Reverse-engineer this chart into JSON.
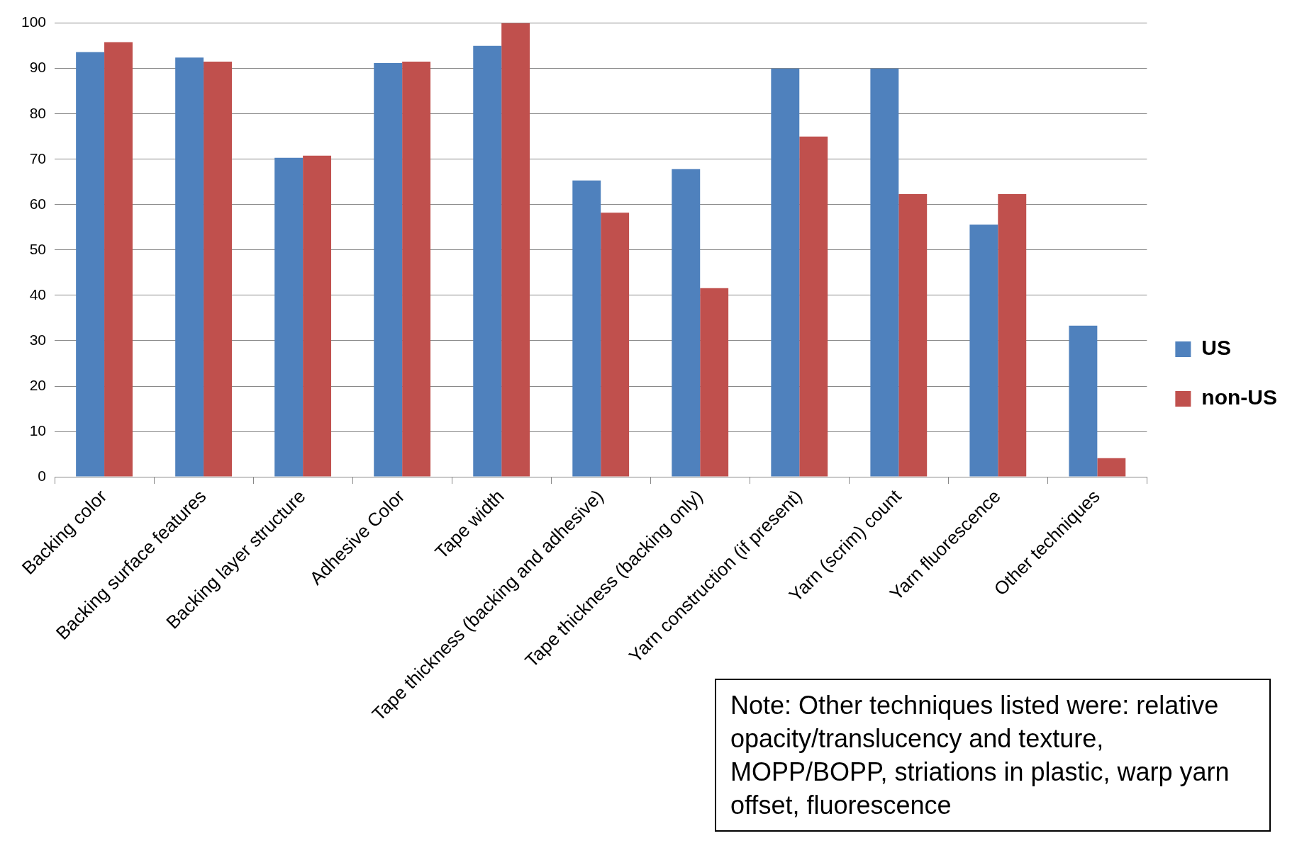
{
  "chart_data": {
    "type": "bar",
    "categories": [
      "Backing color",
      "Backing surface features",
      "Backing layer structure",
      "Adhesive Color",
      "Tape width",
      "Tape thickness (backing and adhesive)",
      "Tape thickness (backing only)",
      "Yarn construction (if present)",
      "Yarn (scrim) count",
      "Yarn fluorescence",
      "Other techniques"
    ],
    "series": [
      {
        "name": "US",
        "color": "#4f81bd",
        "values": [
          93.6,
          92.4,
          70.3,
          91.2,
          95,
          65.3,
          67.8,
          90,
          90,
          55.6,
          33.3
        ]
      },
      {
        "name": "non-US",
        "color": "#c0504d",
        "values": [
          95.8,
          91.5,
          70.8,
          91.5,
          100,
          58.2,
          41.6,
          75,
          62.3,
          62.3,
          4.1
        ]
      }
    ],
    "ylim": [
      0,
      100
    ],
    "yticks": [
      0,
      10,
      20,
      30,
      40,
      50,
      60,
      70,
      80,
      90,
      100
    ],
    "grid": "y",
    "legend": "right",
    "annotations": [
      "Note:  Other techniques listed were: relative opacity/translucency and texture, MOPP/BOPP, striations in plastic, warp yarn offset,  fluorescence"
    ]
  }
}
